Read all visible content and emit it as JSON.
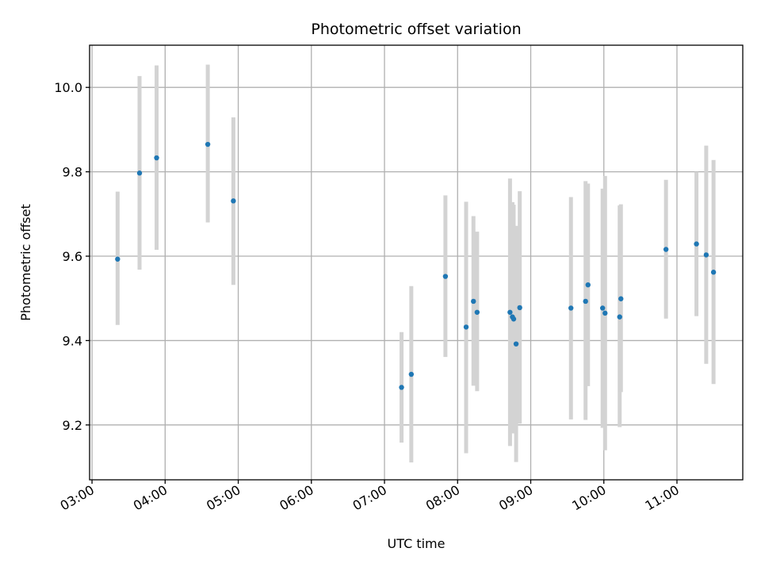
{
  "chart_data": {
    "type": "scatter",
    "title": "Photometric offset variation",
    "xlabel": "UTC time",
    "ylabel": "Photometric offset",
    "xlim": [
      "02:58",
      "11:54"
    ],
    "ylim": [
      9.07,
      10.1
    ],
    "x_ticks": [
      "03:00",
      "04:00",
      "05:00",
      "06:00",
      "07:00",
      "08:00",
      "09:00",
      "10:00",
      "11:00"
    ],
    "y_ticks": [
      9.2,
      9.4,
      9.6,
      9.8,
      10.0
    ],
    "y_tick_labels": [
      "9.2",
      "9.4",
      "9.6",
      "9.8",
      "10.0"
    ],
    "grid": true,
    "colors": {
      "point": "#1f77b4",
      "errorbar": "#d3d3d3"
    },
    "series": [
      {
        "points": [
          {
            "x": "03:21",
            "y": 9.593,
            "ylo": 9.437,
            "yhi": 9.753
          },
          {
            "x": "03:39",
            "y": 9.797,
            "ylo": 9.568,
            "yhi": 10.027
          },
          {
            "x": "03:53",
            "y": 9.833,
            "ylo": 9.615,
            "yhi": 10.052
          },
          {
            "x": "04:35",
            "y": 9.865,
            "ylo": 9.68,
            "yhi": 10.054
          },
          {
            "x": "04:56",
            "y": 9.731,
            "ylo": 9.532,
            "yhi": 9.929
          },
          {
            "x": "07:14",
            "y": 9.289,
            "ylo": 9.158,
            "yhi": 9.42
          },
          {
            "x": "07:22",
            "y": 9.32,
            "ylo": 9.111,
            "yhi": 9.529
          },
          {
            "x": "07:50",
            "y": 9.552,
            "ylo": 9.361,
            "yhi": 9.744
          },
          {
            "x": "08:07",
            "y": 9.432,
            "ylo": 9.133,
            "yhi": 9.729
          },
          {
            "x": "08:13",
            "y": 9.493,
            "ylo": 9.293,
            "yhi": 9.695
          },
          {
            "x": "08:16",
            "y": 9.467,
            "ylo": 9.28,
            "yhi": 9.658
          },
          {
            "x": "08:43",
            "y": 9.467,
            "ylo": 9.15,
            "yhi": 9.784
          },
          {
            "x": "08:45",
            "y": 9.456,
            "ylo": 9.186,
            "yhi": 9.728
          },
          {
            "x": "08:46",
            "y": 9.451,
            "ylo": 9.18,
            "yhi": 9.722
          },
          {
            "x": "08:48",
            "y": 9.392,
            "ylo": 9.112,
            "yhi": 9.672
          },
          {
            "x": "08:51",
            "y": 9.478,
            "ylo": 9.203,
            "yhi": 9.754
          },
          {
            "x": "09:33",
            "y": 9.477,
            "ylo": 9.213,
            "yhi": 9.74
          },
          {
            "x": "09:45",
            "y": 9.493,
            "ylo": 9.212,
            "yhi": 9.778
          },
          {
            "x": "09:47",
            "y": 9.532,
            "ylo": 9.292,
            "yhi": 9.772
          },
          {
            "x": "09:59",
            "y": 9.477,
            "ylo": 9.193,
            "yhi": 9.76
          },
          {
            "x": "10:01",
            "y": 9.465,
            "ylo": 9.14,
            "yhi": 9.79
          },
          {
            "x": "10:13",
            "y": 9.456,
            "ylo": 9.195,
            "yhi": 9.72
          },
          {
            "x": "10:14",
            "y": 9.499,
            "ylo": 9.278,
            "yhi": 9.723
          },
          {
            "x": "10:51",
            "y": 9.616,
            "ylo": 9.452,
            "yhi": 9.781
          },
          {
            "x": "11:16",
            "y": 9.629,
            "ylo": 9.458,
            "yhi": 9.8
          },
          {
            "x": "11:24",
            "y": 9.603,
            "ylo": 9.345,
            "yhi": 9.862
          },
          {
            "x": "11:30",
            "y": 9.562,
            "ylo": 9.297,
            "yhi": 9.828
          }
        ]
      }
    ]
  }
}
